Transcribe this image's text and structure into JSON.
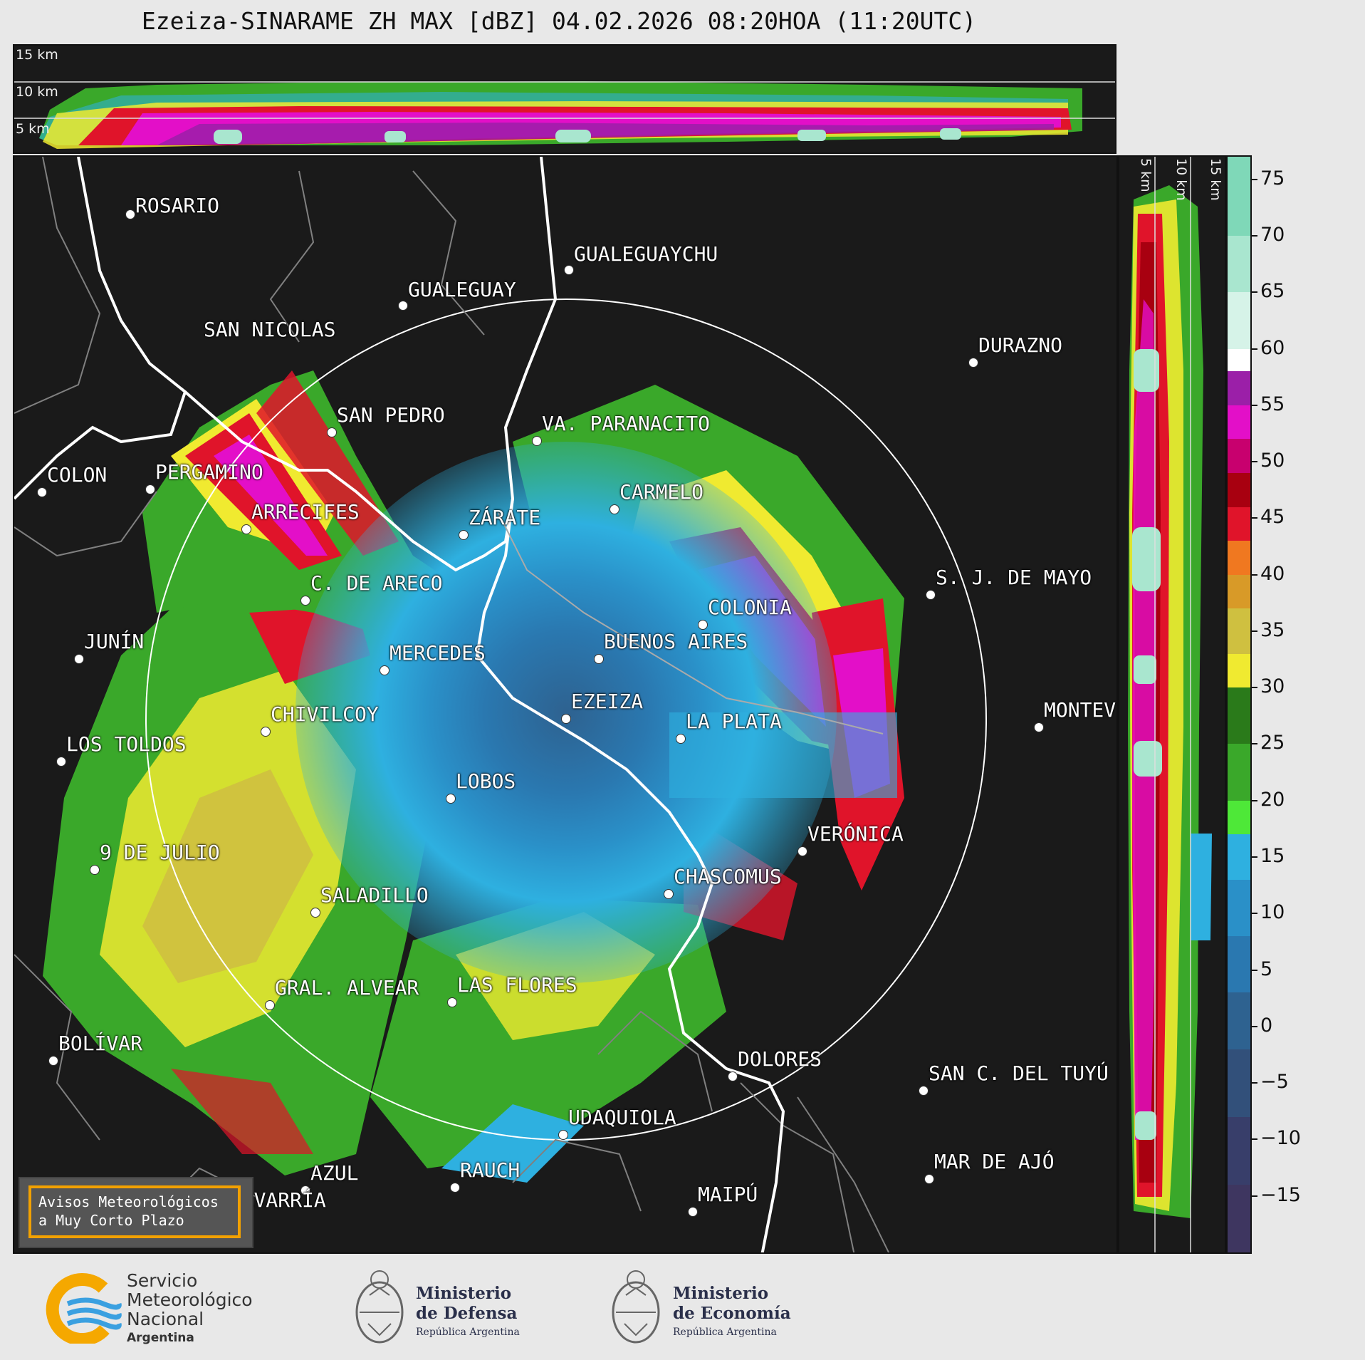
{
  "title": "Ezeiza-SINARAME ZH MAX [dBZ] 04.02.2026 08:20HOA (11:20UTC)",
  "top_strip": {
    "height_labels": [
      "15 km",
      "10 km",
      "5 km"
    ]
  },
  "side_strip": {
    "height_labels": [
      "5 km",
      "10 km",
      "15 km"
    ]
  },
  "colorbar": {
    "unit": "dBZ",
    "ticks": [
      "75",
      "70",
      "65",
      "60",
      "55",
      "50",
      "45",
      "40",
      "35",
      "30",
      "25",
      "20",
      "15",
      "10",
      "5",
      "0",
      "−5",
      "−10",
      "−15"
    ],
    "tick_values": [
      75,
      70,
      65,
      60,
      55,
      50,
      45,
      40,
      35,
      30,
      25,
      20,
      15,
      10,
      5,
      0,
      -5,
      -10,
      -15
    ],
    "range": [
      -20,
      77
    ],
    "segments": [
      {
        "from": 70,
        "to": 77,
        "color": "#7fd8b8"
      },
      {
        "from": 65,
        "to": 70,
        "color": "#a9e6cf"
      },
      {
        "from": 60,
        "to": 65,
        "color": "#d6f3e8"
      },
      {
        "from": 58,
        "to": 60,
        "color": "#ffffff"
      },
      {
        "from": 55,
        "to": 58,
        "color": "#9b1fa8"
      },
      {
        "from": 52,
        "to": 55,
        "color": "#e30fc8"
      },
      {
        "from": 49,
        "to": 52,
        "color": "#c8006e"
      },
      {
        "from": 46,
        "to": 49,
        "color": "#a80010"
      },
      {
        "from": 43,
        "to": 46,
        "color": "#e0142a"
      },
      {
        "from": 40,
        "to": 43,
        "color": "#f07820"
      },
      {
        "from": 37,
        "to": 40,
        "color": "#d89a28"
      },
      {
        "from": 33,
        "to": 37,
        "color": "#cfc040"
      },
      {
        "from": 30,
        "to": 33,
        "color": "#f0ea30"
      },
      {
        "from": 25,
        "to": 30,
        "color": "#2a7a1a"
      },
      {
        "from": 20,
        "to": 25,
        "color": "#3aa82a"
      },
      {
        "from": 17,
        "to": 20,
        "color": "#4ee838"
      },
      {
        "from": 13,
        "to": 17,
        "color": "#2eb0e0"
      },
      {
        "from": 8,
        "to": 13,
        "color": "#2a90c8"
      },
      {
        "from": 3,
        "to": 8,
        "color": "#2a78b0"
      },
      {
        "from": -2,
        "to": 3,
        "color": "#2e6290"
      },
      {
        "from": -8,
        "to": -2,
        "color": "#32507a"
      },
      {
        "from": -14,
        "to": -8,
        "color": "#383e6a"
      },
      {
        "from": -20,
        "to": -14,
        "color": "#3e3660"
      }
    ]
  },
  "cities": [
    {
      "name": "ROSARIO"
    },
    {
      "name": "GUALEGUAYCHU"
    },
    {
      "name": "GUALEGUAY"
    },
    {
      "name": "SAN NICOLAS"
    },
    {
      "name": "DURAZNO"
    },
    {
      "name": "SAN PEDRO"
    },
    {
      "name": "VA. PARANACITO"
    },
    {
      "name": "COLON"
    },
    {
      "name": "PERGAMINO"
    },
    {
      "name": "CARMELO"
    },
    {
      "name": "ARRECIFES"
    },
    {
      "name": "ZÁRATE"
    },
    {
      "name": "S. J. DE MAYO"
    },
    {
      "name": "C. DE ARECO"
    },
    {
      "name": "COLONIA"
    },
    {
      "name": "JUNÍN"
    },
    {
      "name": "BUENOS AIRES"
    },
    {
      "name": "MERCEDES"
    },
    {
      "name": "EZEIZA"
    },
    {
      "name": "MONTEV"
    },
    {
      "name": "CHIVILCOY"
    },
    {
      "name": "LA PLATA"
    },
    {
      "name": "LOS TOLDOS"
    },
    {
      "name": "LOBOS"
    },
    {
      "name": "VERÓNICA"
    },
    {
      "name": "9 DE JULIO"
    },
    {
      "name": "CHASCOMUS"
    },
    {
      "name": "SALADILLO"
    },
    {
      "name": "GRAL. ALVEAR"
    },
    {
      "name": "LAS FLORES"
    },
    {
      "name": "BOLÍVAR"
    },
    {
      "name": "DOLORES"
    },
    {
      "name": "SAN C. DEL TUYÚ"
    },
    {
      "name": "UDAQUIOLA"
    },
    {
      "name": "RAUCH"
    },
    {
      "name": "MAR DE AJÓ"
    },
    {
      "name": "AZUL"
    },
    {
      "name": "OLAVARRÍA"
    },
    {
      "name": "MAIPÚ"
    }
  ],
  "aviso": {
    "line1": "Avisos Meteorológicos",
    "line2": "a Muy Corto Plazo"
  },
  "footer": {
    "smn": {
      "line1": "Servicio",
      "line2": "Meteorológico",
      "line3": "Nacional",
      "line4": "Argentina"
    },
    "defensa": {
      "line1": "Ministerio",
      "line2": "de Defensa",
      "line3": "República Argentina"
    },
    "economia": {
      "line1": "Ministerio",
      "line2": "de Economía",
      "line3": "República Argentina"
    }
  },
  "colors": {
    "map_background": "#1a1a1a",
    "range_ring": "#ffffff",
    "coast": "#ffffff",
    "border": "#808080",
    "aviso_border": "#f2a100",
    "smn_orange": "#f5a800",
    "smn_blue": "#3aa0e0"
  }
}
